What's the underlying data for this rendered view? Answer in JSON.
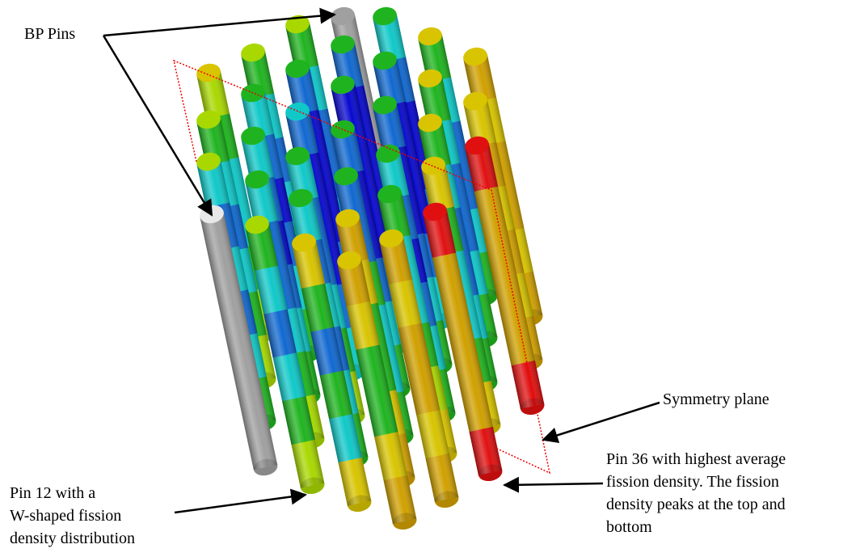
{
  "annotations": {
    "bp_pins": "BP Pins",
    "symmetry_plane": "Symmetry plane",
    "pin36": [
      "Pin 36 with highest average",
      "fission density. The fission",
      "density peaks at the top and",
      "bottom"
    ],
    "pin12": [
      "Pin 12 with a",
      "W-shaped fission",
      "density distribution"
    ]
  }
}
